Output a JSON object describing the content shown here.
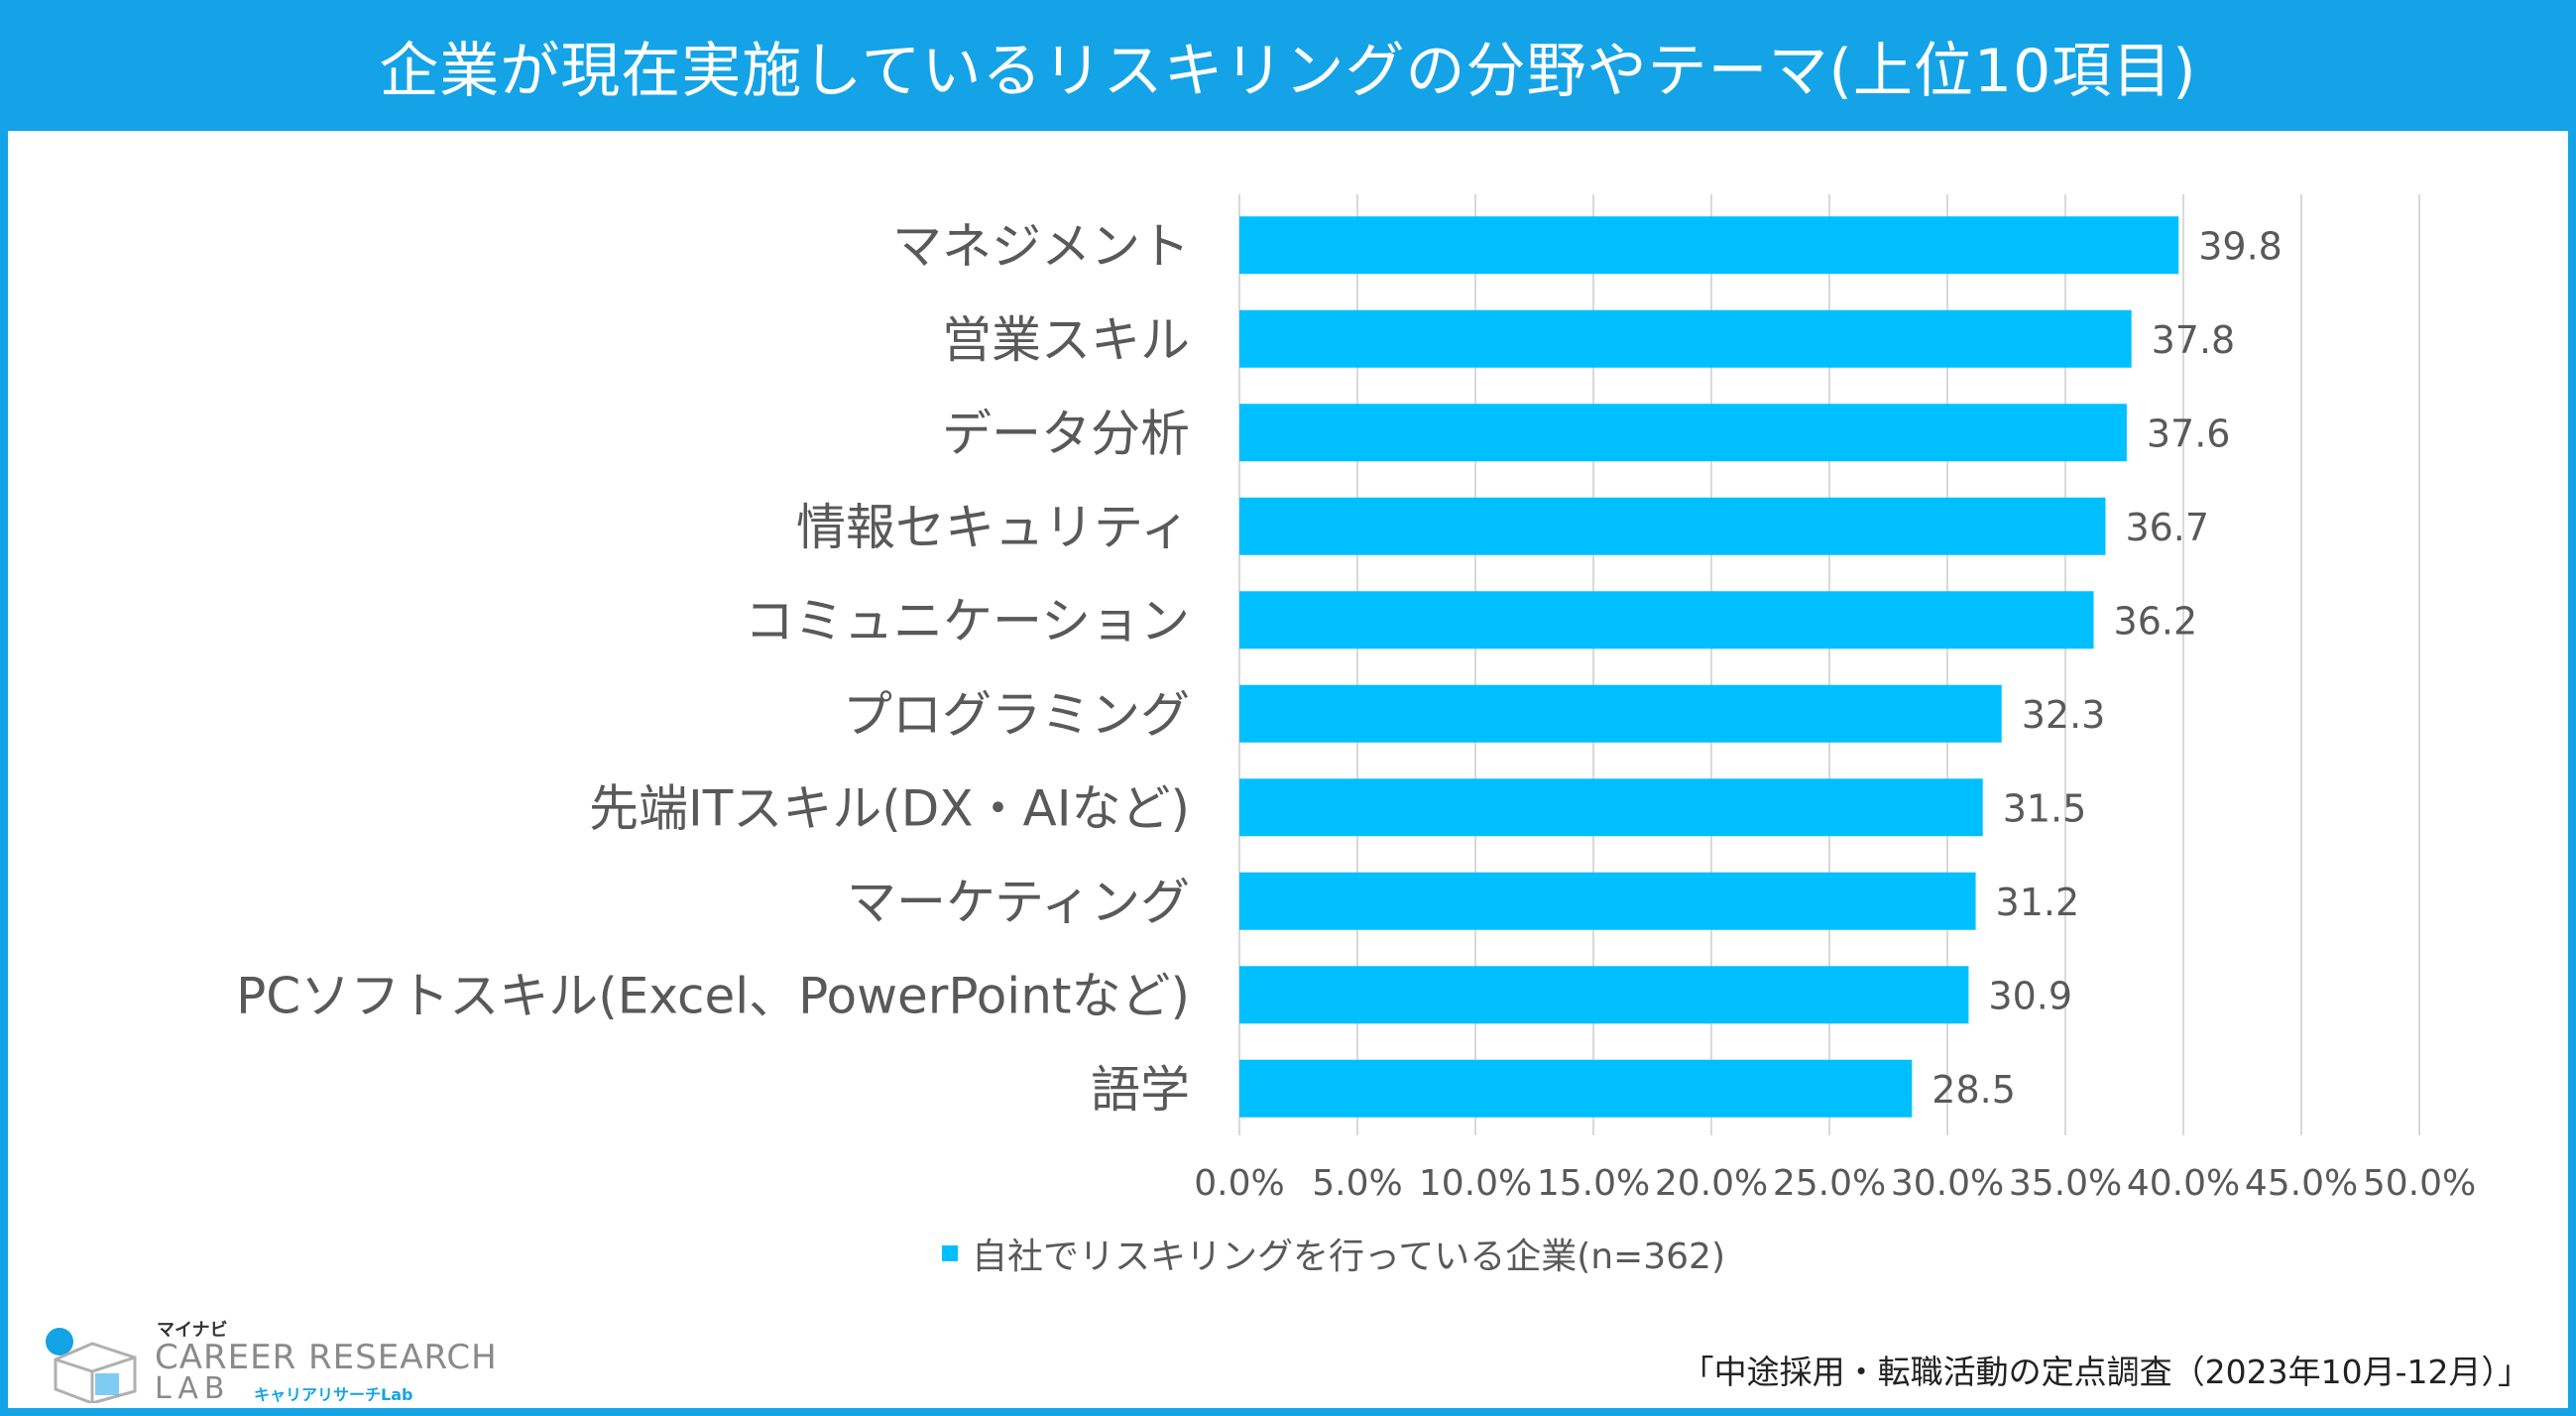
{
  "title": "企業が現在実施しているリスキリングの分野やテーマ(上位10項目)",
  "legend": "自社でリスキリングを行っている企業(n=362)",
  "source": "「中途採用・転職活動の定点調査（2023年10月-12月）」",
  "logo": {
    "kana_top": "マイナビ",
    "line1": "CAREER RESEARCH",
    "line2": "LAB",
    "kana_bottom": "キャリアリサーチLab"
  },
  "colors": {
    "bar": "#00bfff",
    "header": "#14a3e6",
    "grid": "#d9d9d9",
    "text": "#595959"
  },
  "chart_data": {
    "type": "bar",
    "orientation": "horizontal",
    "categories": [
      "マネジメント",
      "営業スキル",
      "データ分析",
      "情報セキュリティ",
      "コミュニケーション",
      "プログラミング",
      "先端ITスキル(DX・AIなど)",
      "マーケティング",
      "PCソフトスキル(Excel、PowerPointなど)",
      "語学"
    ],
    "series": [
      {
        "name": "自社でリスキリングを行っている企業(n=362)",
        "values": [
          39.8,
          37.8,
          37.6,
          36.7,
          36.2,
          32.3,
          31.5,
          31.2,
          30.9,
          28.5
        ]
      }
    ],
    "data_labels": [
      "39.8",
      "37.8",
      "37.6",
      "36.7",
      "36.2",
      "32.3",
      "31.5",
      "31.2",
      "30.9",
      "28.5"
    ],
    "xlim": [
      0,
      50
    ],
    "xticks": [
      0,
      5,
      10,
      15,
      20,
      25,
      30,
      35,
      40,
      45,
      50
    ],
    "xtick_labels": [
      "0.0%",
      "5.0%",
      "10.0%",
      "15.0%",
      "20.0%",
      "25.0%",
      "30.0%",
      "35.0%",
      "40.0%",
      "45.0%",
      "50.0%"
    ],
    "grid": true,
    "legend_position": "bottom"
  }
}
